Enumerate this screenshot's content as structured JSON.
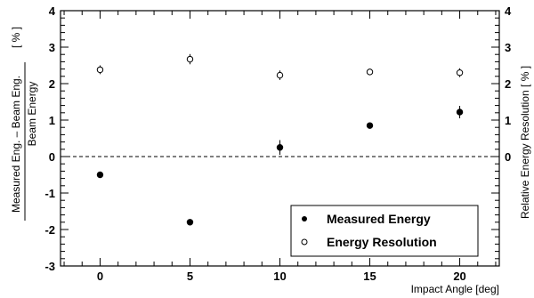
{
  "chart_data": {
    "type": "scatter",
    "title": "",
    "xlabel": "Impact Angle [deg]",
    "ylabel_left": {
      "numerator": "Measured Eng. – Beam Eng.",
      "denominator": "Beam Energy",
      "unit": "[ % ]"
    },
    "ylabel_right": "Relative Energy Resolution [ % ]",
    "xlim": [
      -2.2,
      22.2
    ],
    "ylim": [
      -3,
      4
    ],
    "x_ticks": [
      0,
      5,
      10,
      15,
      20
    ],
    "y_ticks_left": [
      -3,
      -2,
      -1,
      0,
      1,
      2,
      3,
      4
    ],
    "y_ticks_right": [
      0,
      1,
      2,
      3,
      4
    ],
    "reference_line": 0,
    "legend_position": "bottom-right",
    "series": [
      {
        "name": "Measured Energy",
        "marker": "filled-circle",
        "axis": "left",
        "x": [
          0,
          5,
          10,
          15,
          20
        ],
        "y": [
          -0.5,
          -1.8,
          0.25,
          0.85,
          1.22
        ],
        "yerr": [
          0.08,
          0.08,
          0.2,
          0.06,
          0.17
        ]
      },
      {
        "name": "Energy Resolution",
        "marker": "open-circle",
        "axis": "right",
        "x": [
          0,
          5,
          10,
          15,
          20
        ],
        "y": [
          2.38,
          2.67,
          2.23,
          2.32,
          2.3
        ],
        "yerr": [
          0.12,
          0.14,
          0.13,
          0.04,
          0.12
        ]
      }
    ]
  }
}
